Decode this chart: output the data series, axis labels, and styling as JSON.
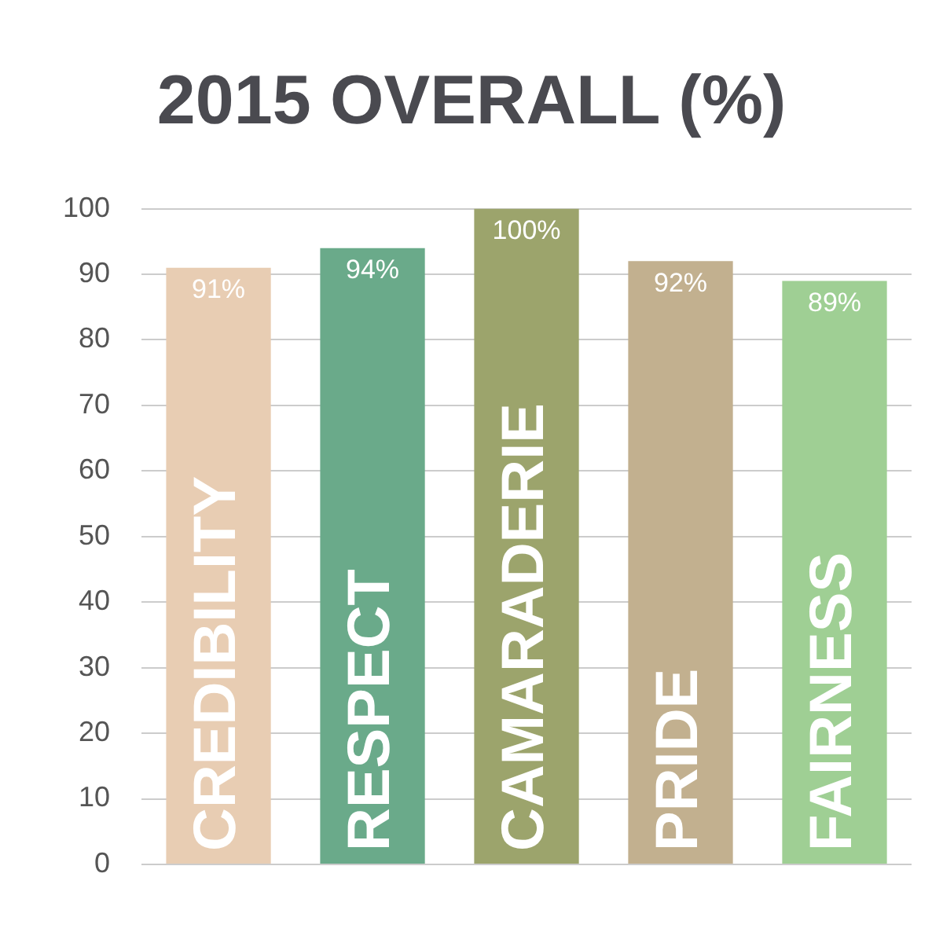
{
  "chart_data": {
    "type": "bar",
    "title": "2015 OVERALL (%)",
    "categories": [
      "CREDIBILITY",
      "RESPECT",
      "CAMARADERIE",
      "PRIDE",
      "FAIRNESS"
    ],
    "values": [
      91,
      94,
      100,
      92,
      89
    ],
    "colors": [
      "#e8cdb3",
      "#6aaa8a",
      "#9ca46c",
      "#c2b08f",
      "#9fcf94"
    ],
    "value_labels": [
      "91%",
      "94%",
      "100%",
      "92%",
      "89%"
    ],
    "ylim": [
      0,
      100
    ],
    "yticks": [
      0,
      10,
      20,
      30,
      40,
      50,
      60,
      70,
      80,
      90,
      100
    ],
    "grid": "y"
  }
}
